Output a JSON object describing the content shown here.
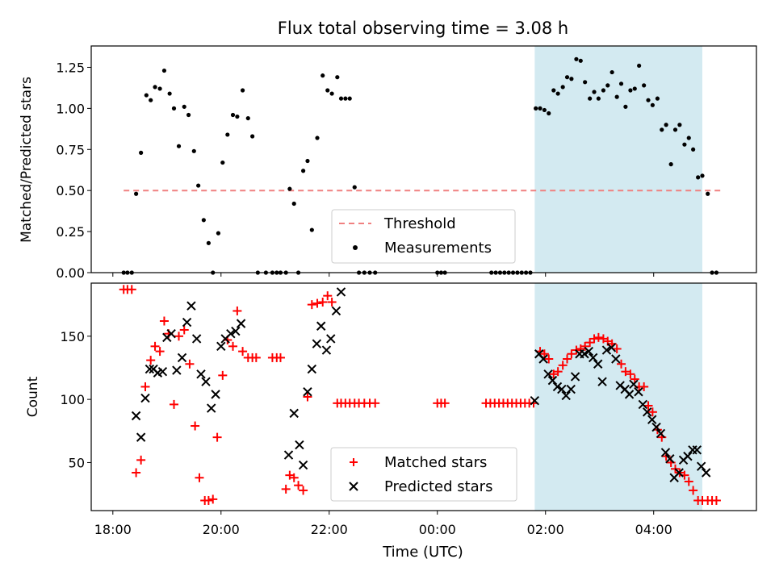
{
  "chart_data": [
    {
      "type": "scatter",
      "title": "Flux total observing time = 3.08 h",
      "xlabel": "",
      "ylabel": "Matched/Predicted stars",
      "ylim": [
        0,
        1.38
      ],
      "yticks": [
        "0.00",
        "0.25",
        "0.50",
        "0.75",
        "1.00",
        "1.25"
      ],
      "xlim_hours": [
        17.6,
        29.9
      ],
      "highlight_hours": [
        25.8,
        28.9
      ],
      "threshold": {
        "name": "Threshold",
        "value": 0.5,
        "x_start": 18.2,
        "x_end": 29.3,
        "color": "#f08080"
      },
      "legend": {
        "placement": "lower center",
        "entries": [
          "Threshold",
          "Measurements"
        ]
      },
      "series": [
        {
          "name": "Measurements",
          "color": "#000000",
          "x": [
            18.2,
            18.27,
            18.35,
            18.43,
            18.52,
            18.62,
            18.7,
            18.78,
            18.87,
            18.95,
            19.05,
            19.13,
            19.22,
            19.32,
            19.4,
            19.5,
            19.58,
            19.68,
            19.77,
            19.85,
            19.95,
            20.03,
            20.12,
            20.22,
            20.3,
            20.4,
            20.5,
            20.58,
            20.68,
            20.83,
            20.95,
            21.03,
            21.1,
            21.2,
            21.27,
            21.35,
            21.43,
            21.52,
            21.6,
            21.68,
            21.78,
            21.88,
            21.97,
            22.05,
            22.15,
            22.22,
            22.3,
            22.38,
            22.47,
            22.55,
            22.65,
            22.75,
            22.85,
            24.0,
            24.07,
            24.14,
            25.0,
            25.08,
            25.16,
            25.24,
            25.32,
            25.4,
            25.48,
            25.56,
            25.64,
            25.72,
            25.82,
            25.9,
            25.98,
            26.06,
            26.15,
            26.23,
            26.32,
            26.4,
            26.48,
            26.57,
            26.65,
            26.73,
            26.82,
            26.9,
            26.98,
            27.07,
            27.15,
            27.23,
            27.32,
            27.4,
            27.48,
            27.57,
            27.65,
            27.73,
            27.82,
            27.9,
            27.98,
            28.07,
            28.15,
            28.23,
            28.32,
            28.4,
            28.48,
            28.57,
            28.65,
            28.73,
            28.82,
            28.9,
            29.0,
            29.08,
            29.16
          ],
          "y": [
            0,
            0,
            0,
            0.48,
            0.73,
            1.08,
            1.05,
            1.13,
            1.12,
            1.23,
            1.09,
            1.0,
            0.77,
            1.01,
            0.96,
            0.74,
            0.53,
            0.32,
            0.18,
            0,
            0.24,
            0.67,
            0.84,
            0.96,
            0.95,
            1.11,
            0.94,
            0.83,
            0,
            0,
            0,
            0,
            0,
            0,
            0.51,
            0.42,
            0,
            0.62,
            0.68,
            0.26,
            0.82,
            1.2,
            1.11,
            1.09,
            1.19,
            1.06,
            1.06,
            1.06,
            0.52,
            0,
            0,
            0,
            0,
            0,
            0,
            0,
            0,
            0,
            0,
            0,
            0,
            0,
            0,
            0,
            0,
            0,
            1.0,
            1.0,
            0.99,
            0.97,
            1.11,
            1.09,
            1.13,
            1.19,
            1.18,
            1.3,
            1.29,
            1.16,
            1.06,
            1.1,
            1.06,
            1.11,
            1.14,
            1.22,
            1.07,
            1.15,
            1.01,
            1.11,
            1.12,
            1.26,
            1.14,
            1.05,
            1.02,
            1.06,
            0.87,
            0.9,
            0.66,
            0.87,
            0.9,
            0.78,
            0.82,
            0.75,
            0.58,
            0.59,
            0.48,
            0,
            0
          ]
        }
      ]
    },
    {
      "type": "scatter",
      "title": "",
      "xlabel": "Time (UTC)",
      "ylabel": "Count",
      "ylim": [
        12,
        192
      ],
      "yticks": [
        "50",
        "100",
        "150"
      ],
      "xticks": [
        "18:00",
        "20:00",
        "22:00",
        "00:00",
        "02:00",
        "04:00"
      ],
      "xlim_hours": [
        17.6,
        29.9
      ],
      "highlight_hours": [
        25.8,
        28.9
      ],
      "legend": {
        "placement": "lower center",
        "entries": [
          "Matched stars",
          "Predicted stars"
        ]
      },
      "series": [
        {
          "name": "Matched stars",
          "marker": "+",
          "color": "#ff0000",
          "x": [
            18.2,
            18.27,
            18.35,
            18.43,
            18.52,
            18.6,
            18.7,
            18.78,
            18.87,
            18.95,
            19.03,
            19.13,
            19.22,
            19.32,
            19.42,
            19.52,
            19.6,
            19.7,
            19.77,
            19.85,
            19.93,
            20.03,
            20.12,
            20.22,
            20.3,
            20.4,
            20.5,
            20.58,
            20.65,
            20.95,
            21.03,
            21.1,
            21.2,
            21.27,
            21.35,
            21.43,
            21.52,
            21.6,
            21.68,
            21.78,
            21.88,
            21.97,
            22.05,
            22.15,
            22.22,
            22.3,
            22.38,
            22.47,
            22.55,
            22.65,
            22.75,
            22.85,
            24.0,
            24.07,
            24.14,
            24.9,
            24.98,
            25.06,
            25.14,
            25.22,
            25.3,
            25.38,
            25.46,
            25.54,
            25.62,
            25.7,
            25.78,
            25.9,
            25.98,
            26.06,
            26.15,
            26.23,
            26.32,
            26.4,
            26.48,
            26.57,
            26.65,
            26.73,
            26.82,
            26.9,
            26.98,
            27.07,
            27.15,
            27.23,
            27.32,
            27.4,
            27.48,
            27.57,
            27.65,
            27.73,
            27.82,
            27.9,
            27.98,
            28.07,
            28.15,
            28.23,
            28.32,
            28.4,
            28.48,
            28.57,
            28.65,
            28.73,
            28.82,
            28.9,
            29.0,
            29.08,
            29.16
          ],
          "y": [
            187,
            187,
            187,
            42,
            52,
            110,
            131,
            142,
            138,
            162,
            152,
            96,
            150,
            155,
            128,
            79,
            38,
            20,
            20,
            21,
            70,
            119,
            147,
            142,
            170,
            138,
            133,
            133,
            133,
            133,
            133,
            133,
            29,
            40,
            38,
            32,
            28,
            102,
            175,
            176,
            177,
            182,
            177,
            97,
            97,
            97,
            97,
            97,
            97,
            97,
            97,
            97,
            97,
            97,
            97,
            97,
            97,
            97,
            97,
            97,
            97,
            97,
            97,
            97,
            97,
            97,
            97,
            138,
            136,
            132,
            120,
            122,
            127,
            132,
            136,
            139,
            140,
            142,
            145,
            148,
            149,
            148,
            146,
            144,
            140,
            128,
            122,
            120,
            116,
            110,
            110,
            95,
            90,
            76,
            70,
            55,
            50,
            45,
            42,
            40,
            35,
            28,
            20,
            20,
            20,
            20,
            20
          ],
          "note": "visual approximation of scattered values"
        },
        {
          "name": "Predicted stars",
          "marker": "x",
          "color": "#000000",
          "x": [
            18.43,
            18.52,
            18.6,
            18.68,
            18.75,
            18.83,
            18.92,
            19.0,
            19.08,
            19.18,
            19.28,
            19.37,
            19.45,
            19.55,
            19.63,
            19.72,
            19.82,
            19.9,
            20.0,
            20.08,
            20.18,
            20.27,
            20.37,
            21.25,
            21.35,
            21.45,
            21.52,
            21.6,
            21.68,
            21.77,
            21.85,
            21.95,
            22.03,
            22.13,
            22.22,
            25.8,
            25.88,
            25.96,
            26.05,
            26.13,
            26.22,
            26.3,
            26.38,
            26.47,
            26.55,
            26.63,
            26.72,
            26.8,
            26.88,
            26.97,
            27.05,
            27.13,
            27.22,
            27.3,
            27.38,
            27.47,
            27.55,
            27.63,
            27.72,
            27.8,
            27.88,
            27.97,
            28.05,
            28.13,
            28.22,
            28.3,
            28.38,
            28.47,
            28.55,
            28.63,
            28.72,
            28.8,
            28.88,
            28.97
          ],
          "y": [
            87,
            70,
            101,
            124,
            124,
            121,
            122,
            149,
            152,
            123,
            133,
            161,
            174,
            148,
            120,
            114,
            93,
            104,
            142,
            148,
            152,
            154,
            160,
            56,
            89,
            64,
            48,
            106,
            124,
            144,
            158,
            139,
            148,
            170,
            185,
            99,
            136,
            132,
            120,
            115,
            110,
            108,
            103,
            108,
            118,
            136,
            136,
            138,
            133,
            128,
            114,
            139,
            141,
            132,
            111,
            108,
            104,
            112,
            106,
            96,
            90,
            84,
            78,
            73,
            58,
            53,
            38,
            42,
            52,
            55,
            60,
            60,
            47,
            42
          ]
        }
      ]
    }
  ]
}
